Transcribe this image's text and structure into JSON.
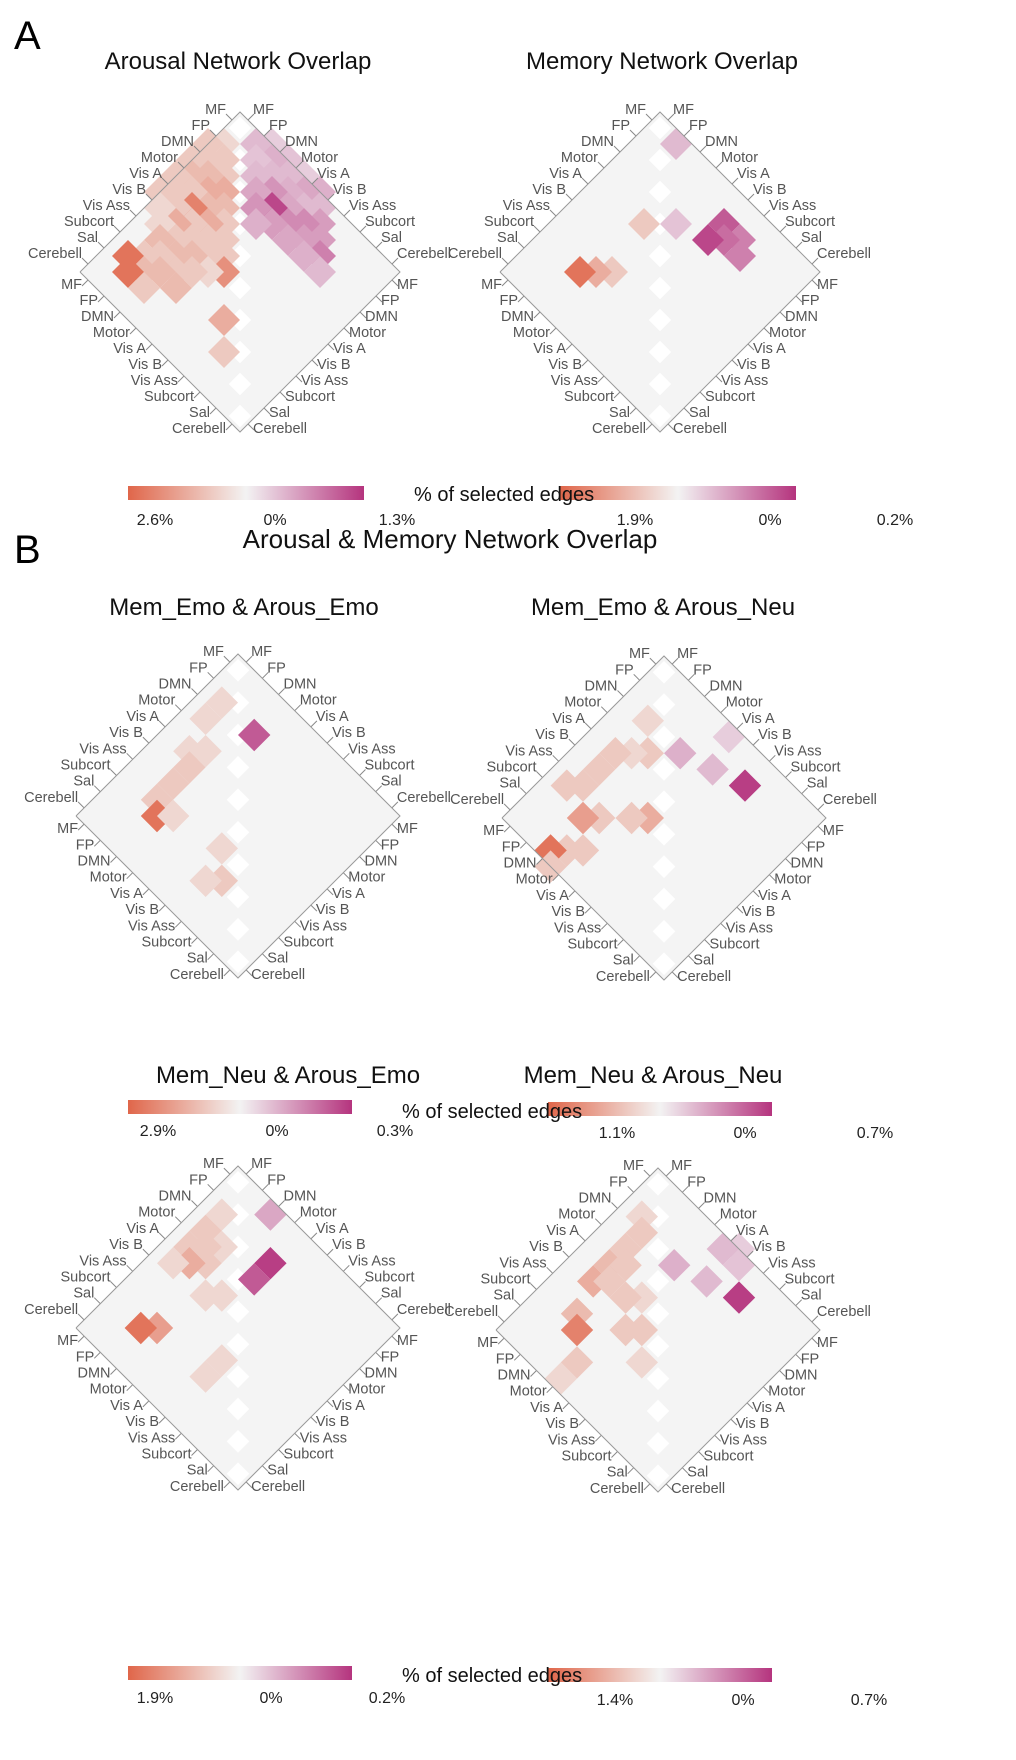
{
  "panels": {
    "A": "A",
    "B": "B"
  },
  "section_b_title": "Arousal & Memory Network Overlap",
  "networks": [
    "MF",
    "FP",
    "DMN",
    "Motor",
    "Vis A",
    "Vis B",
    "Vis Ass",
    "Subcort",
    "Sal",
    "Cerebell"
  ],
  "colors": {
    "negative": "#e0664a",
    "zero": "#f3f3f3",
    "positive": "#b5347e"
  },
  "chart_data": [
    {
      "id": "arousal",
      "type": "heatmap",
      "title": "Arousal Network Overlap",
      "colorbar": {
        "label": "% of selected edges",
        "min": "2.6%",
        "mid": "0%",
        "max": "1.3%"
      },
      "cells": [
        [
          0,
          1,
          0.2
        ],
        [
          1,
          1,
          0.3
        ],
        [
          0,
          2,
          0.3
        ],
        [
          1,
          2,
          0.3
        ],
        [
          2,
          2,
          0.3
        ],
        [
          0,
          3,
          0.3
        ],
        [
          1,
          3,
          0.4
        ],
        [
          2,
          3,
          0.4
        ],
        [
          3,
          3,
          0.3
        ],
        [
          0,
          4,
          0.5
        ],
        [
          1,
          4,
          0.5
        ],
        [
          2,
          4,
          0.3
        ],
        [
          3,
          4,
          0.3
        ],
        [
          4,
          4,
          0.3
        ],
        [
          0,
          5,
          0.4
        ],
        [
          1,
          5,
          0.4
        ],
        [
          2,
          5,
          0.8
        ],
        [
          3,
          5,
          0.3
        ],
        [
          4,
          5,
          0.2
        ],
        [
          0,
          6,
          0.3
        ],
        [
          1,
          6,
          0.5
        ],
        [
          2,
          6,
          0.3
        ],
        [
          3,
          6,
          0.5
        ],
        [
          4,
          6,
          0.2
        ],
        [
          0,
          7,
          0.3
        ],
        [
          1,
          7,
          0.3
        ],
        [
          2,
          7,
          0.3
        ],
        [
          3,
          7,
          0.3
        ],
        [
          4,
          7,
          0.4
        ],
        [
          0,
          8,
          0.3
        ],
        [
          1,
          8,
          0.3
        ],
        [
          2,
          8,
          0.4
        ],
        [
          3,
          8,
          0.4
        ],
        [
          4,
          8,
          0.3
        ],
        [
          5,
          8,
          0.3
        ],
        [
          6,
          8,
          0.9
        ],
        [
          0,
          9,
          0.7
        ],
        [
          1,
          9,
          0.2
        ],
        [
          2,
          9,
          0.3
        ],
        [
          3,
          9,
          0.3
        ],
        [
          4,
          9,
          0.4
        ],
        [
          5,
          9,
          0.4
        ],
        [
          6,
          9,
          0.9
        ],
        [
          3,
          10,
          0.4
        ],
        [
          5,
          10,
          0.3
        ],
        [
          0,
          12,
          0.5
        ],
        [
          0,
          14,
          0.3
        ]
      ],
      "upper": [
        [
          1,
          0.2
        ],
        [
          2,
          0.25
        ],
        [
          3,
          0.2
        ],
        [
          4,
          0.35
        ],
        [
          5,
          0.3
        ],
        [
          6,
          0.35
        ],
        [
          7,
          0.3
        ],
        [
          8,
          0.4
        ],
        [
          9,
          0.3
        ],
        [
          10,
          0.25
        ],
        [
          11,
          0.3
        ],
        [
          12,
          0.35
        ],
        [
          13,
          0.3
        ],
        [
          14,
          0.45
        ],
        [
          15,
          0.3
        ],
        [
          16,
          0.5
        ],
        [
          17,
          0.4
        ],
        [
          18,
          0.55
        ],
        [
          19,
          0.45
        ],
        [
          20,
          0.4
        ],
        [
          21,
          0.9
        ],
        [
          22,
          0.55
        ],
        [
          23,
          0.45
        ],
        [
          24,
          0.6
        ],
        [
          25,
          0.5
        ],
        [
          26,
          0.45
        ],
        [
          27,
          0.4
        ],
        [
          28,
          0.35
        ],
        [
          29,
          0.3
        ],
        [
          30,
          0.35
        ]
      ]
    },
    {
      "id": "memory",
      "type": "heatmap",
      "title": "Memory Network Overlap",
      "colorbar": {
        "label": "",
        "min": "1.9%",
        "mid": "0%",
        "max": "0.2%"
      },
      "cells": [
        [
          0,
          6,
          0.3
        ],
        [
          2,
          9,
          0.3
        ],
        [
          3,
          9,
          0.5
        ],
        [
          4,
          9,
          0.9
        ]
      ],
      "upper": [
        [
          5,
          0.3
        ],
        [
          18,
          0.8
        ],
        [
          19,
          0.6
        ],
        [
          23,
          0.7
        ],
        [
          24,
          0.6
        ],
        [
          27,
          0.9
        ],
        [
          30,
          0.25
        ]
      ]
    },
    {
      "id": "emo_emo",
      "type": "heatmap",
      "title": "Mem_Emo & Arous_Emo",
      "colorbar": {
        "label": "% of selected edges",
        "min": "2.9%",
        "mid": "0%",
        "max": "0.3%"
      },
      "cells": [
        [
          0,
          2,
          0.2
        ],
        [
          1,
          3,
          0.2
        ],
        [
          1,
          5,
          0.2
        ],
        [
          2,
          5,
          0.2
        ],
        [
          2,
          6,
          0.3
        ],
        [
          3,
          7,
          0.3
        ],
        [
          4,
          8,
          0.3
        ],
        [
          4,
          9,
          0.9
        ],
        [
          3,
          9,
          0.2
        ],
        [
          0,
          11,
          0.2
        ],
        [
          0,
          13,
          0.3
        ],
        [
          1,
          13,
          0.2
        ]
      ],
      "upper": [
        [
          20,
          0.8
        ]
      ]
    },
    {
      "id": "emo_neu",
      "type": "heatmap",
      "title": "Mem_Emo & Arous_Neu",
      "colorbar": {
        "label": "",
        "min": "1.1%",
        "mid": "0%",
        "max": "0.7%"
      },
      "cells": [
        [
          0,
          3,
          0.2
        ],
        [
          0,
          5,
          0.3
        ],
        [
          1,
          5,
          0.2
        ],
        [
          2,
          5,
          0.3
        ],
        [
          3,
          6,
          0.3
        ],
        [
          4,
          7,
          0.3
        ],
        [
          5,
          7,
          0.3
        ],
        [
          0,
          9,
          0.5
        ],
        [
          1,
          9,
          0.3
        ],
        [
          3,
          9,
          0.3
        ],
        [
          4,
          9,
          0.6
        ],
        [
          4,
          11,
          0.3
        ],
        [
          5,
          11,
          0.3
        ],
        [
          6,
          11,
          0.9
        ],
        [
          6,
          12,
          0.3
        ]
      ],
      "upper": [
        [
          8,
          0.2
        ],
        [
          19,
          0.95
        ],
        [
          22,
          0.3
        ],
        [
          25,
          0.35
        ]
      ]
    },
    {
      "id": "neu_emo",
      "type": "heatmap",
      "title": "Mem_Neu & Arous_Emo",
      "colorbar": {
        "label": "% of selected edges",
        "min": "1.9%",
        "mid": "0%",
        "max": "0.2%"
      },
      "cells": [
        [
          0,
          2,
          0.2
        ],
        [
          1,
          3,
          0.3
        ],
        [
          0,
          4,
          0.2
        ],
        [
          1,
          4,
          0.3
        ],
        [
          2,
          4,
          0.3
        ],
        [
          1,
          5,
          0.3
        ],
        [
          2,
          5,
          0.5
        ],
        [
          3,
          5,
          0.2
        ],
        [
          0,
          7,
          0.2
        ],
        [
          1,
          7,
          0.2
        ],
        [
          4,
          9,
          0.6
        ],
        [
          5,
          9,
          0.9
        ],
        [
          0,
          11,
          0.2
        ],
        [
          1,
          12,
          0.2
        ]
      ],
      "upper": [
        [
          6,
          0.4
        ],
        [
          21,
          0.95
        ],
        [
          30,
          0.8
        ]
      ]
    },
    {
      "id": "neu_neu",
      "type": "heatmap",
      "title": "Mem_Neu & Arous_Neu",
      "colorbar": {
        "label": "",
        "min": "1.4%",
        "mid": "0%",
        "max": "0.7%"
      },
      "cells": [
        [
          0,
          2,
          0.2
        ],
        [
          0,
          3,
          0.3
        ],
        [
          1,
          4,
          0.3
        ],
        [
          2,
          5,
          0.4
        ],
        [
          1,
          5,
          0.3
        ],
        [
          3,
          6,
          0.5
        ],
        [
          2,
          6,
          0.3
        ],
        [
          0,
          7,
          0.2
        ],
        [
          1,
          7,
          0.3
        ],
        [
          4,
          8,
          0.4
        ],
        [
          0,
          9,
          0.3
        ],
        [
          1,
          9,
          0.3
        ],
        [
          4,
          9,
          0.8
        ],
        [
          0,
          11,
          0.2
        ],
        [
          4,
          11,
          0.3
        ],
        [
          5,
          12,
          0.2
        ]
      ],
      "upper": [
        [
          4,
          0.2
        ],
        [
          8,
          0.3
        ],
        [
          9,
          0.25
        ],
        [
          19,
          0.95
        ],
        [
          22,
          0.3
        ],
        [
          25,
          0.35
        ]
      ]
    }
  ]
}
